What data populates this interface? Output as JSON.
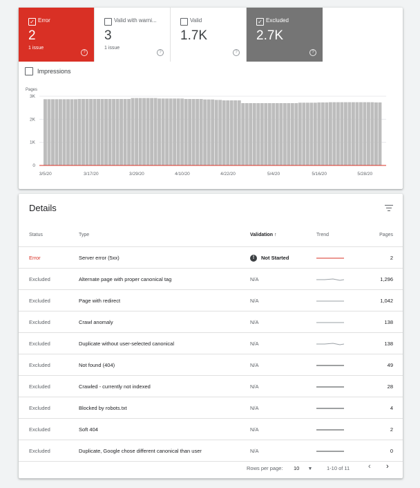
{
  "tiles": [
    {
      "label": "Error",
      "value": "2",
      "sub": "1 issue",
      "checked": true,
      "kind": "error"
    },
    {
      "label": "Valid with warni...",
      "value": "3",
      "sub": "1 issue",
      "checked": false,
      "kind": "normal"
    },
    {
      "label": "Valid",
      "value": "1.7K",
      "sub": "",
      "checked": false,
      "kind": "normal"
    },
    {
      "label": "Excluded",
      "value": "2.7K",
      "sub": "",
      "checked": true,
      "kind": "excluded"
    }
  ],
  "help_glyph": "?",
  "check_glyph": "✓",
  "impressions_label": "Impressions",
  "chart_data": {
    "type": "bar",
    "ylabel": "Pages",
    "y_ticks": [
      "3K",
      "2K",
      "1K",
      "0"
    ],
    "ylim": [
      0,
      3000
    ],
    "x_tick_labels": [
      "3/5/20",
      "3/17/20",
      "3/29/20",
      "4/10/20",
      "4/22/20",
      "5/4/20",
      "5/16/20",
      "5/28/20"
    ],
    "series": [
      {
        "name": "Excluded",
        "color": "#bdbdbd",
        "values": [
          2870,
          2870,
          2870,
          2870,
          2870,
          2870,
          2870,
          2870,
          2870,
          2880,
          2880,
          2880,
          2880,
          2880,
          2880,
          2880,
          2880,
          2880,
          2880,
          2880,
          2880,
          2880,
          2880,
          2920,
          2920,
          2920,
          2920,
          2920,
          2920,
          2920,
          2900,
          2900,
          2900,
          2900,
          2900,
          2900,
          2900,
          2880,
          2880,
          2880,
          2880,
          2880,
          2860,
          2860,
          2860,
          2840,
          2840,
          2820,
          2820,
          2820,
          2820,
          2820,
          2700,
          2700,
          2700,
          2700,
          2700,
          2700,
          2700,
          2700,
          2700,
          2700,
          2700,
          2700,
          2700,
          2700,
          2700,
          2720,
          2720,
          2720,
          2720,
          2720,
          2730,
          2730,
          2730,
          2740,
          2740,
          2740,
          2740,
          2740,
          2740,
          2740,
          2740,
          2740,
          2740,
          2740,
          2740,
          2730,
          2730
        ]
      },
      {
        "name": "Error",
        "color": "#d93025",
        "values": [
          2
        ]
      }
    ],
    "grid": true
  },
  "details": {
    "title": "Details",
    "headers": {
      "status": "Status",
      "type": "Type",
      "validation": "Validation",
      "trend": "Trend",
      "pages": "Pages"
    },
    "sort_arrow": "↑",
    "rows": [
      {
        "status": "Error",
        "type": "Server error (5xx)",
        "validation": "Not Started",
        "badge": "!",
        "pages": "2",
        "trend_color": "#d93025"
      },
      {
        "status": "Excluded",
        "type": "Alternate page with proper canonical tag",
        "validation": "N/A",
        "pages": "1,296",
        "trend_color": "#9aa0a6"
      },
      {
        "status": "Excluded",
        "type": "Page with redirect",
        "validation": "N/A",
        "pages": "1,042",
        "trend_color": "#9aa0a6"
      },
      {
        "status": "Excluded",
        "type": "Crawl anomaly",
        "validation": "N/A",
        "pages": "138",
        "trend_color": "#9aa0a6"
      },
      {
        "status": "Excluded",
        "type": "Duplicate without user-selected canonical",
        "validation": "N/A",
        "pages": "138",
        "trend_color": "#9aa0a6"
      },
      {
        "status": "Excluded",
        "type": "Not found (404)",
        "validation": "N/A",
        "pages": "49",
        "trend_color": "#3c4043"
      },
      {
        "status": "Excluded",
        "type": "Crawled - currently not indexed",
        "validation": "N/A",
        "pages": "28",
        "trend_color": "#3c4043"
      },
      {
        "status": "Excluded",
        "type": "Blocked by robots.txt",
        "validation": "N/A",
        "pages": "4",
        "trend_color": "#3c4043"
      },
      {
        "status": "Excluded",
        "type": "Soft 404",
        "validation": "N/A",
        "pages": "2",
        "trend_color": "#3c4043"
      },
      {
        "status": "Excluded",
        "type": "Duplicate, Google chose different canonical than user",
        "validation": "N/A",
        "pages": "0",
        "trend_color": "#3c4043"
      }
    ]
  },
  "footer": {
    "rows_per_page_label": "Rows per page:",
    "rows_per_page": "10",
    "dropdown_glyph": "▼",
    "range": "1-10 of 11",
    "prev": "‹",
    "next": "›"
  }
}
